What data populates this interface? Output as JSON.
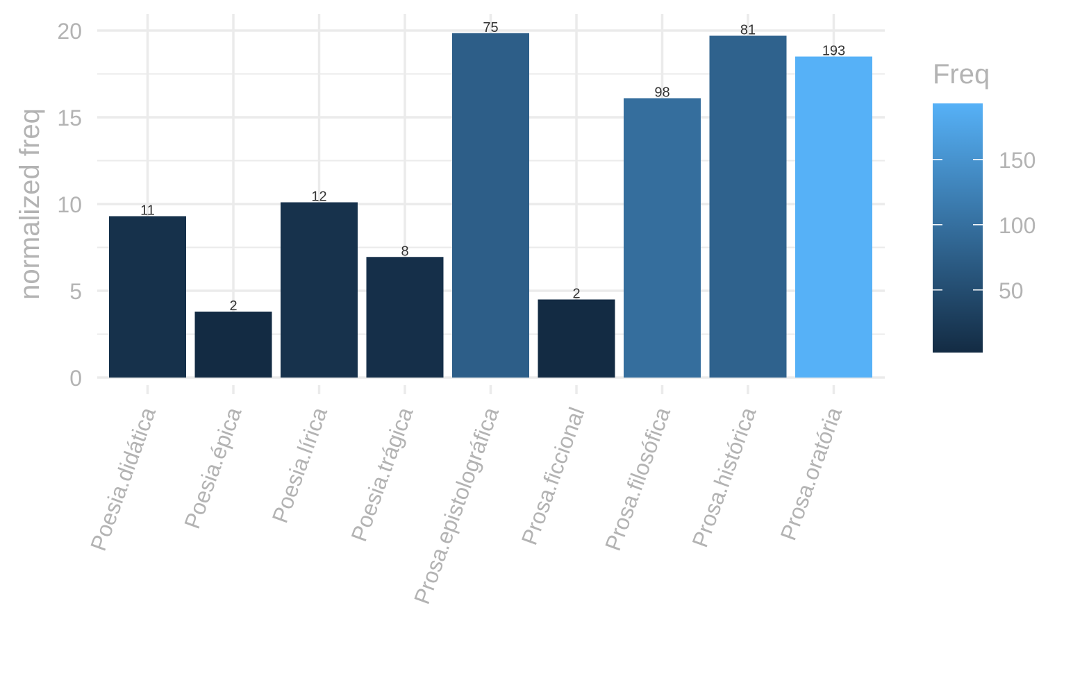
{
  "chart_data": {
    "type": "bar",
    "categories": [
      "Poesia.didática",
      "Poesia.épica",
      "Poesia.lírica",
      "Poesia.trágica",
      "Prosa.epistolográfica",
      "Prosa.ficcional",
      "Prosa.filosófica",
      "Prosa.histórica",
      "Prosa.oratória"
    ],
    "values": [
      9.3,
      3.8,
      10.1,
      6.95,
      19.85,
      4.5,
      16.1,
      19.7,
      18.5
    ],
    "freq": [
      11,
      2,
      12,
      8,
      75,
      2,
      98,
      81,
      193
    ],
    "bar_labels": [
      "11",
      "2",
      "12",
      "8",
      "75",
      "2",
      "98",
      "81",
      "193"
    ],
    "ylabel": "normalized freq",
    "xlabel": "",
    "ylim": [
      0,
      20
    ],
    "y_ticks": [
      "0",
      "5",
      "10",
      "15",
      "20"
    ],
    "grid": true,
    "legend": {
      "title": "Freq",
      "position": "right",
      "range": [
        2,
        193
      ],
      "ticks": [
        50,
        100,
        150
      ],
      "tick_labels": [
        "50",
        "100",
        "150"
      ],
      "color_low": "#132b43",
      "color_high": "#56b1f7"
    }
  }
}
